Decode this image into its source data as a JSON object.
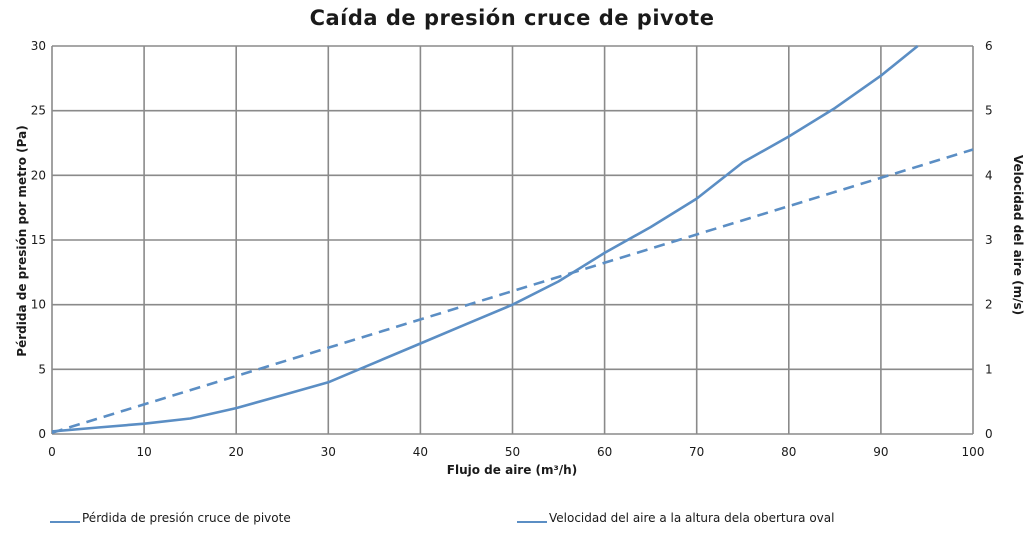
{
  "chart_data": {
    "type": "line",
    "title": "Caída de presión cruce de pivote",
    "xlabel": "Flujo de aire (m³/h)",
    "ylabel": "Pérdida de presión por metro (Pa)",
    "y2label": "Velocidad del aire (m/s)",
    "xlim": [
      0,
      100
    ],
    "ylim": [
      0,
      30
    ],
    "y2lim": [
      0,
      6
    ],
    "xticks": [
      0,
      10,
      20,
      30,
      40,
      50,
      60,
      70,
      80,
      90,
      100
    ],
    "yticks": [
      0,
      5,
      10,
      15,
      20,
      25,
      30
    ],
    "y2ticks": [
      0,
      1,
      2,
      3,
      4,
      5,
      6
    ],
    "grid": true,
    "legend_position": "bottom",
    "series": [
      {
        "name": "Pérdida de presión cruce de pivote",
        "axis": "left",
        "style": "solid",
        "color": "#5b8ec4",
        "x": [
          0,
          5,
          10,
          15,
          20,
          25,
          30,
          35,
          40,
          45,
          50,
          55,
          60,
          65,
          70,
          75,
          80,
          85,
          90,
          94
        ],
        "y": [
          0.2,
          0.5,
          0.8,
          1.2,
          2.0,
          3.0,
          4.0,
          5.5,
          7.0,
          8.5,
          10.0,
          11.8,
          14.0,
          16.0,
          18.2,
          21.0,
          23.0,
          25.2,
          27.7,
          30.0
        ]
      },
      {
        "name": "Velocidad del aire a la altura dela obertura oval",
        "axis": "right",
        "style": "dashed",
        "color": "#5b8ec4",
        "x": [
          0,
          100
        ],
        "y": [
          0.02,
          4.4
        ]
      }
    ]
  }
}
